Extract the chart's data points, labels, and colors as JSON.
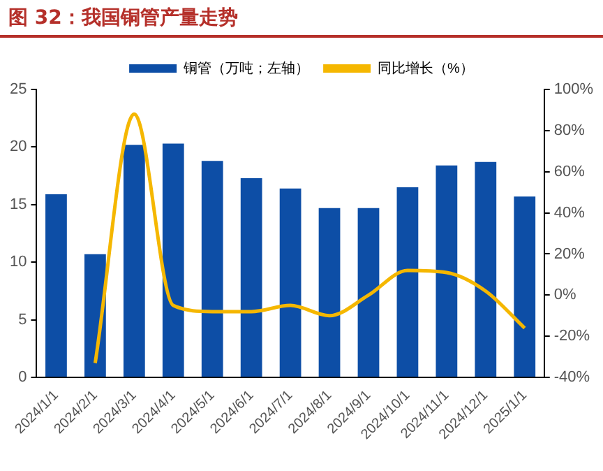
{
  "chart_data": {
    "type": "bar",
    "title": "图 32：我国铜管产量走势",
    "categories": [
      "2024/1/1",
      "2024/2/1",
      "2024/3/1",
      "2024/4/1",
      "2024/5/1",
      "2024/6/1",
      "2024/7/1",
      "2024/8/1",
      "2024/9/1",
      "2024/10/1",
      "2024/11/1",
      "2024/12/1",
      "2025/1/1"
    ],
    "series": [
      {
        "name": "铜管（万吨；左轴）",
        "color": "#0d4ea6",
        "values": [
          15.9,
          10.7,
          20.2,
          20.3,
          18.8,
          17.3,
          16.4,
          14.7,
          14.7,
          16.5,
          18.4,
          18.7,
          15.7
        ]
      },
      {
        "name": "同比增长（%）",
        "type": "line",
        "axis": "y2",
        "color": "#f5b700",
        "values": [
          null,
          -33,
          88,
          -5,
          -8,
          -8,
          -5,
          -10,
          0,
          12,
          11,
          2,
          -16
        ]
      }
    ],
    "ylim": [
      0,
      25
    ],
    "yticks": [
      0,
      5,
      10,
      15,
      20,
      25
    ],
    "y2lim": [
      -40,
      100
    ],
    "y2ticks": [
      {
        "value": -40,
        "label": "-40%"
      },
      {
        "value": -20,
        "label": "-20%"
      },
      {
        "value": 0,
        "label": "0%"
      },
      {
        "value": 20,
        "label": "20%"
      },
      {
        "value": 40,
        "label": "40%"
      },
      {
        "value": 60,
        "label": "60%"
      },
      {
        "value": 80,
        "label": "80%"
      },
      {
        "value": 100,
        "label": "100%"
      }
    ],
    "grid": false,
    "legend": "top",
    "marker": "none"
  }
}
